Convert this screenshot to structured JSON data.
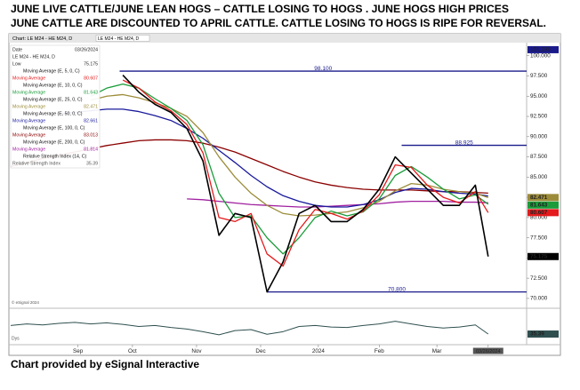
{
  "header": {
    "line1": "JUNE LIVE CATTLE/JUNE LEAN HOGS – CATTLE LOSING TO HOGS .  JUNE HOGS HIGH PRICES",
    "line2": "JUNE CATTLE ARE DISCOUNTED TO APRIL CATTLE. CATTLE LOSING TO HOGS IS RIPE FOR REVERSAL."
  },
  "footer": "Chart provided by eSignal Interactive",
  "chart_data": {
    "type": "line",
    "toolbar_title": "Chart: LE M24 - HE M24, D",
    "date_label": "Date",
    "date": "03/26/2024",
    "price_label": "Low",
    "legend_item_label": "Moving Average",
    "copyright": "© eSignal 2024",
    "period_label": "Dys",
    "top_marker": 101.188,
    "x": [
      0,
      5,
      10,
      15,
      20,
      25,
      30,
      35,
      40,
      45,
      50,
      55,
      60,
      65,
      70,
      75,
      80,
      85,
      90,
      95,
      100,
      105,
      110,
      115,
      120,
      125,
      130,
      135,
      140,
      145,
      149
    ],
    "xlim": [
      0,
      161
    ],
    "xticks": [
      {
        "value": 21,
        "label": "Sep"
      },
      {
        "value": 38,
        "label": "Oct"
      },
      {
        "value": 58,
        "label": "Nov"
      },
      {
        "value": 78,
        "label": "Dec"
      },
      {
        "value": 96,
        "label": "2024"
      },
      {
        "value": 115,
        "label": "Feb"
      },
      {
        "value": 133,
        "label": "Mar"
      },
      {
        "value": 149,
        "label": "03/26/2024"
      }
    ],
    "ylim": [
      69,
      101.4
    ],
    "yticks": [
      {
        "value": 70,
        "label": "70.000"
      },
      {
        "value": 72.5,
        "label": "72.500"
      },
      {
        "value": 75,
        "label": "75.000"
      },
      {
        "value": 77.5,
        "label": "77.500"
      },
      {
        "value": 80,
        "label": "80.000"
      },
      {
        "value": 82.5,
        "label": "82.500"
      },
      {
        "value": 85,
        "label": "85.000"
      },
      {
        "value": 87.5,
        "label": "87.500"
      },
      {
        "value": 90,
        "label": "90.000"
      },
      {
        "value": 92.5,
        "label": "92.500"
      },
      {
        "value": 95,
        "label": "95.000"
      },
      {
        "value": 97.5,
        "label": "97.500"
      },
      {
        "value": 100,
        "label": "100.000"
      }
    ],
    "grid": false,
    "series": [
      {
        "name": "LE M24 - HE M24, D",
        "color": "#000000",
        "values": [
          null,
          null,
          null,
          null,
          null,
          null,
          null,
          97.6,
          95.5,
          94,
          93,
          91,
          87,
          77.8,
          80.5,
          80,
          70.8,
          74.5,
          80.5,
          81.5,
          79.5,
          79.5,
          81,
          83.5,
          87.5,
          85.5,
          83.5,
          81.5,
          81.5,
          84,
          75.175
        ]
      },
      {
        "name": "Moving Average (E, 5, 0, C)",
        "color": "#e41a1c",
        "values": [
          null,
          null,
          null,
          null,
          null,
          null,
          null,
          97,
          96,
          94.3,
          93.2,
          91.5,
          88,
          80,
          79.5,
          80.5,
          75.5,
          74,
          78.5,
          81,
          80.5,
          79.8,
          80.8,
          82.8,
          86.5,
          86.2,
          84,
          82.5,
          81.8,
          83.2,
          80.607
        ]
      },
      {
        "name": "Moving Average (E, 10, 0, C)",
        "color": "#1a9c3a",
        "values": [
          null,
          null,
          null,
          null,
          null,
          95,
          96,
          96.5,
          96,
          94.7,
          93.5,
          92,
          89,
          83,
          80,
          80.2,
          77.5,
          75.5,
          77.5,
          80,
          80.8,
          80.2,
          80.7,
          82.3,
          85.2,
          86.3,
          85,
          83.5,
          82.3,
          82.8,
          81.643
        ]
      },
      {
        "name": "Moving Average (E, 25, 0, C)",
        "color": "#9c8c3a",
        "values": [
          null,
          null,
          null,
          null,
          null,
          94.5,
          95,
          95.2,
          94.8,
          94.2,
          93.5,
          92.5,
          90.5,
          87.5,
          85,
          83,
          81.5,
          80.5,
          80.2,
          80.3,
          80.5,
          80.7,
          81.2,
          82,
          83.3,
          84.2,
          84,
          83.5,
          83.2,
          83,
          82.471
        ]
      },
      {
        "name": "Moving Average (E, 50, 0, C)",
        "color": "#1a1a9c",
        "values": [
          null,
          null,
          null,
          92.8,
          93,
          93.2,
          93.4,
          93.4,
          93.1,
          92.6,
          92,
          91,
          89.8,
          88.3,
          86.8,
          85.2,
          83.8,
          82.7,
          82,
          81.5,
          81.3,
          81.3,
          81.6,
          82.2,
          83.1,
          83.6,
          83.5,
          83.2,
          83,
          82.9,
          82.661
        ]
      },
      {
        "name": "Moving Average (E, 100, 0, C)",
        "color": "#8b0000",
        "values": [
          86.3,
          86.8,
          87.3,
          87.7,
          88.1,
          88.5,
          88.9,
          89.2,
          89.5,
          89.6,
          89.6,
          89.5,
          89.2,
          88.7,
          88.1,
          87.3,
          86.5,
          85.7,
          85,
          84.4,
          84,
          83.7,
          83.5,
          83.4,
          83.4,
          83.4,
          83.3,
          83.2,
          83.2,
          83.1,
          83.013
        ]
      },
      {
        "name": "Moving Average (E, 200, 0, C)",
        "color": "#a020a0",
        "values": [
          null,
          null,
          null,
          null,
          null,
          null,
          null,
          null,
          null,
          null,
          null,
          82.3,
          82.2,
          82,
          81.8,
          81.6,
          81.5,
          81.4,
          81.3,
          81.3,
          81.4,
          81.5,
          81.6,
          81.7,
          81.9,
          82,
          82,
          82,
          81.9,
          81.9,
          81.814
        ]
      }
    ],
    "annotations": [
      {
        "value": 98.1,
        "label": "98.100",
        "x_start": 34
      },
      {
        "value": 88.925,
        "label": "88.925",
        "x_start": 122
      },
      {
        "value": 70.8,
        "label": "70.800",
        "x_start": 80
      }
    ],
    "rsi": {
      "name": "Relative Strength Index (14, C)",
      "label": "Relative Strength Index",
      "color": "#2f4f4f",
      "ylim": [
        20,
        80
      ],
      "values": [
        52,
        55,
        53,
        56,
        58,
        55,
        57,
        54,
        50,
        52,
        48,
        45,
        40,
        34,
        42,
        44,
        35,
        40,
        50,
        52,
        49,
        48,
        52,
        55,
        60,
        55,
        50,
        47,
        49,
        53,
        35.39
      ]
    }
  }
}
